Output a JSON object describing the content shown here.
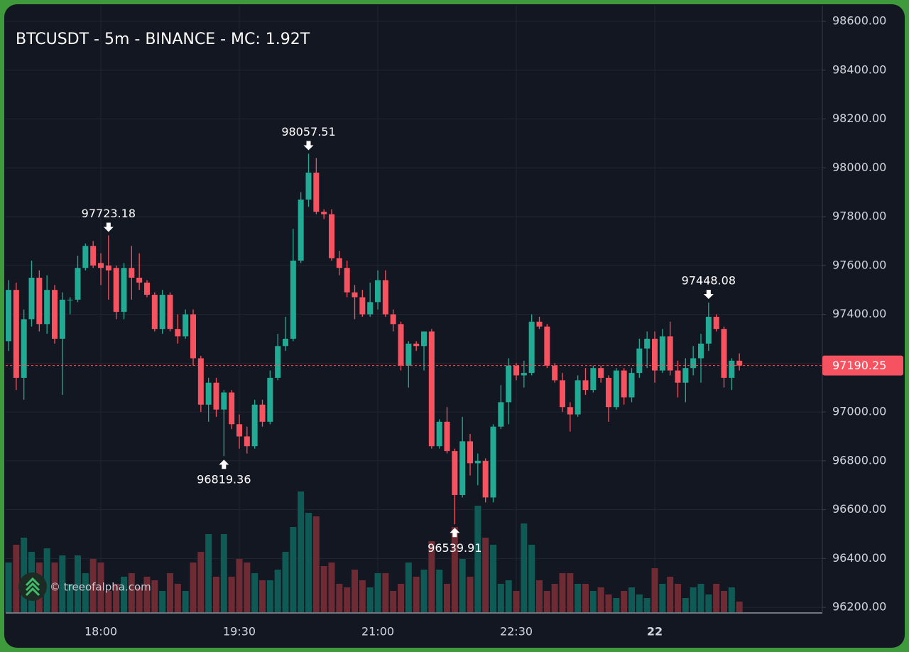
{
  "chart_data": {
    "type": "candlestick",
    "title": "BTCUSDT - 5m - BINANCE - MC: 1.92T",
    "watermark": "© treeofalpha.com",
    "categories": [
      null,
      null,
      null,
      null,
      null,
      null,
      null,
      null,
      null,
      null,
      null,
      null,
      "18:00",
      null,
      null,
      null,
      null,
      null,
      null,
      null,
      null,
      null,
      null,
      null,
      null,
      null,
      null,
      null,
      null,
      null,
      "19:30",
      null,
      null,
      null,
      null,
      null,
      null,
      null,
      null,
      null,
      null,
      null,
      null,
      null,
      null,
      null,
      null,
      null,
      "21:00",
      null,
      null,
      null,
      null,
      null,
      null,
      null,
      null,
      null,
      null,
      null,
      null,
      null,
      null,
      null,
      null,
      null,
      "22:30",
      null,
      null,
      null,
      null,
      null,
      null,
      null,
      null,
      null,
      null,
      null,
      null,
      null,
      null,
      null,
      null,
      null,
      "22",
      null,
      null,
      null,
      null,
      null,
      null,
      null,
      null,
      null,
      null,
      null
    ],
    "open": [
      97290,
      97500,
      97140,
      97380,
      97550,
      97360,
      97500,
      97300,
      97460,
      97460,
      97590,
      97680,
      97610,
      97600,
      97590,
      97410,
      97590,
      97550,
      97530,
      97480,
      97340,
      97480,
      97340,
      97310,
      97400,
      97220,
      97030,
      97120,
      97010,
      97080,
      96950,
      96900,
      96860,
      97030,
      96960,
      97140,
      97270,
      97300,
      97620,
      97870,
      97980,
      97820,
      97810,
      97630,
      97590,
      97490,
      97470,
      97400,
      97450,
      97540,
      97400,
      97360,
      97190,
      97280,
      97270,
      97330,
      96860,
      96960,
      96840,
      96660,
      96880,
      96790,
      96800,
      96650,
      96940,
      97040,
      97190,
      97150,
      97160,
      97370,
      97350,
      97190,
      97130,
      97020,
      96990,
      97130,
      97090,
      97180,
      97140,
      97020,
      97170,
      97060,
      97160,
      97260,
      97300,
      97170,
      97310,
      97170,
      97120,
      97180,
      97220,
      97280,
      97390,
      97340,
      97140,
      97210
    ],
    "high": [
      97540,
      97530,
      97420,
      97620,
      97580,
      97560,
      97520,
      97490,
      97470,
      97640,
      97690,
      97700,
      97650,
      97723.18,
      97600,
      97610,
      97680,
      97650,
      97540,
      97490,
      97500,
      97490,
      97400,
      97420,
      97420,
      97230,
      97140,
      97140,
      97090,
      97090,
      96990,
      96940,
      97050,
      97050,
      97170,
      97320,
      97390,
      97750,
      97900,
      98057.51,
      98040,
      97830,
      97830,
      97660,
      97620,
      97520,
      97500,
      97530,
      97580,
      97580,
      97420,
      97370,
      97290,
      97290,
      97330,
      97340,
      96970,
      97020,
      96850,
      96980,
      96910,
      96830,
      96810,
      96950,
      97110,
      97220,
      97200,
      97210,
      97400,
      97390,
      97360,
      97200,
      97160,
      97040,
      97150,
      97180,
      97190,
      97190,
      97150,
      97180,
      97180,
      97180,
      97300,
      97330,
      97330,
      97340,
      97370,
      97210,
      97220,
      97270,
      97320,
      97448.08,
      97400,
      97350,
      97220,
      97240
    ],
    "low": [
      97250,
      97090,
      97050,
      97350,
      97330,
      97320,
      97280,
      97070,
      97400,
      97450,
      97580,
      97590,
      97520,
      97460,
      97380,
      97380,
      97460,
      97500,
      97470,
      97330,
      97320,
      97330,
      97280,
      97300,
      97190,
      97000,
      96960,
      96980,
      96819.36,
      96930,
      96850,
      96830,
      96850,
      96940,
      96950,
      97130,
      97250,
      97290,
      97610,
      97840,
      97810,
      97790,
      97620,
      97560,
      97470,
      97380,
      97390,
      97390,
      97420,
      97390,
      97330,
      97170,
      97100,
      97250,
      97170,
      96850,
      96850,
      96830,
      96539.91,
      96650,
      96740,
      96700,
      96630,
      96630,
      96930,
      96950,
      97130,
      97100,
      97150,
      97340,
      97180,
      97120,
      97000,
      96920,
      96980,
      97070,
      97080,
      97120,
      96960,
      97010,
      97030,
      97040,
      97140,
      97180,
      97120,
      97160,
      97150,
      97060,
      97040,
      97150,
      97120,
      97250,
      97330,
      97100,
      97090,
      97170
    ],
    "close": [
      97500,
      97140,
      97380,
      97550,
      97360,
      97500,
      97300,
      97460,
      97460,
      97590,
      97680,
      97600,
      97590,
      97580,
      97410,
      97590,
      97550,
      97530,
      97480,
      97340,
      97480,
      97340,
      97310,
      97400,
      97220,
      97030,
      97120,
      97010,
      97080,
      96950,
      96900,
      96860,
      97030,
      96960,
      97140,
      97270,
      97300,
      97620,
      97870,
      97980,
      97820,
      97810,
      97630,
      97590,
      97490,
      97470,
      97400,
      97450,
      97540,
      97400,
      97360,
      97190,
      97280,
      97270,
      97330,
      96860,
      96960,
      96840,
      96660,
      96880,
      96790,
      96800,
      96650,
      96940,
      97040,
      97190,
      97150,
      97160,
      97370,
      97350,
      97190,
      97130,
      97020,
      96990,
      97130,
      97090,
      97180,
      97140,
      97020,
      97170,
      97060,
      97160,
      97260,
      97300,
      97170,
      97310,
      97170,
      97120,
      97180,
      97220,
      97280,
      97390,
      97340,
      97140,
      97210,
      97190.25
    ],
    "volume": [
      70,
      95,
      105,
      85,
      70,
      90,
      70,
      80,
      40,
      80,
      55,
      75,
      70,
      30,
      40,
      50,
      55,
      35,
      50,
      45,
      30,
      55,
      40,
      30,
      70,
      85,
      110,
      50,
      110,
      50,
      75,
      70,
      55,
      45,
      45,
      60,
      85,
      120,
      170,
      140,
      135,
      65,
      70,
      40,
      35,
      60,
      45,
      35,
      55,
      55,
      30,
      40,
      70,
      50,
      60,
      100,
      60,
      40,
      120,
      75,
      50,
      150,
      105,
      95,
      40,
      45,
      30,
      125,
      95,
      45,
      30,
      40,
      55,
      55,
      40,
      40,
      30,
      35,
      25,
      20,
      30,
      35,
      25,
      20,
      62,
      40,
      50,
      40,
      20,
      35,
      40,
      25,
      40,
      30,
      35,
      15
    ],
    "marked_highs": [
      13,
      39,
      91
    ],
    "marked_lows": [
      28,
      58
    ],
    "up_color": "#22ab94",
    "down_color": "#f7525f",
    "up_volume_color": "#0f5a54",
    "down_volume_color": "#6e2b33",
    "ylim": [
      96180,
      98664
    ],
    "yticks": [
      {
        "value": 96200,
        "label": "96200.00"
      },
      {
        "value": 96400,
        "label": "96400.00"
      },
      {
        "value": 96600,
        "label": "96600.00"
      },
      {
        "value": 96800,
        "label": "96800.00"
      },
      {
        "value": 97000,
        "label": "97000.00"
      },
      {
        "value": 97200,
        "label": "97200.00"
      },
      {
        "value": 97400,
        "label": "97400.00"
      },
      {
        "value": 97600,
        "label": "97600.00"
      },
      {
        "value": 97800,
        "label": "97800.00"
      },
      {
        "value": 98000,
        "label": "98000.00"
      },
      {
        "value": 98200,
        "label": "98200.00"
      },
      {
        "value": 98400,
        "label": "98400.00"
      },
      {
        "value": 98600,
        "label": "98600.00"
      }
    ],
    "grid": true
  }
}
